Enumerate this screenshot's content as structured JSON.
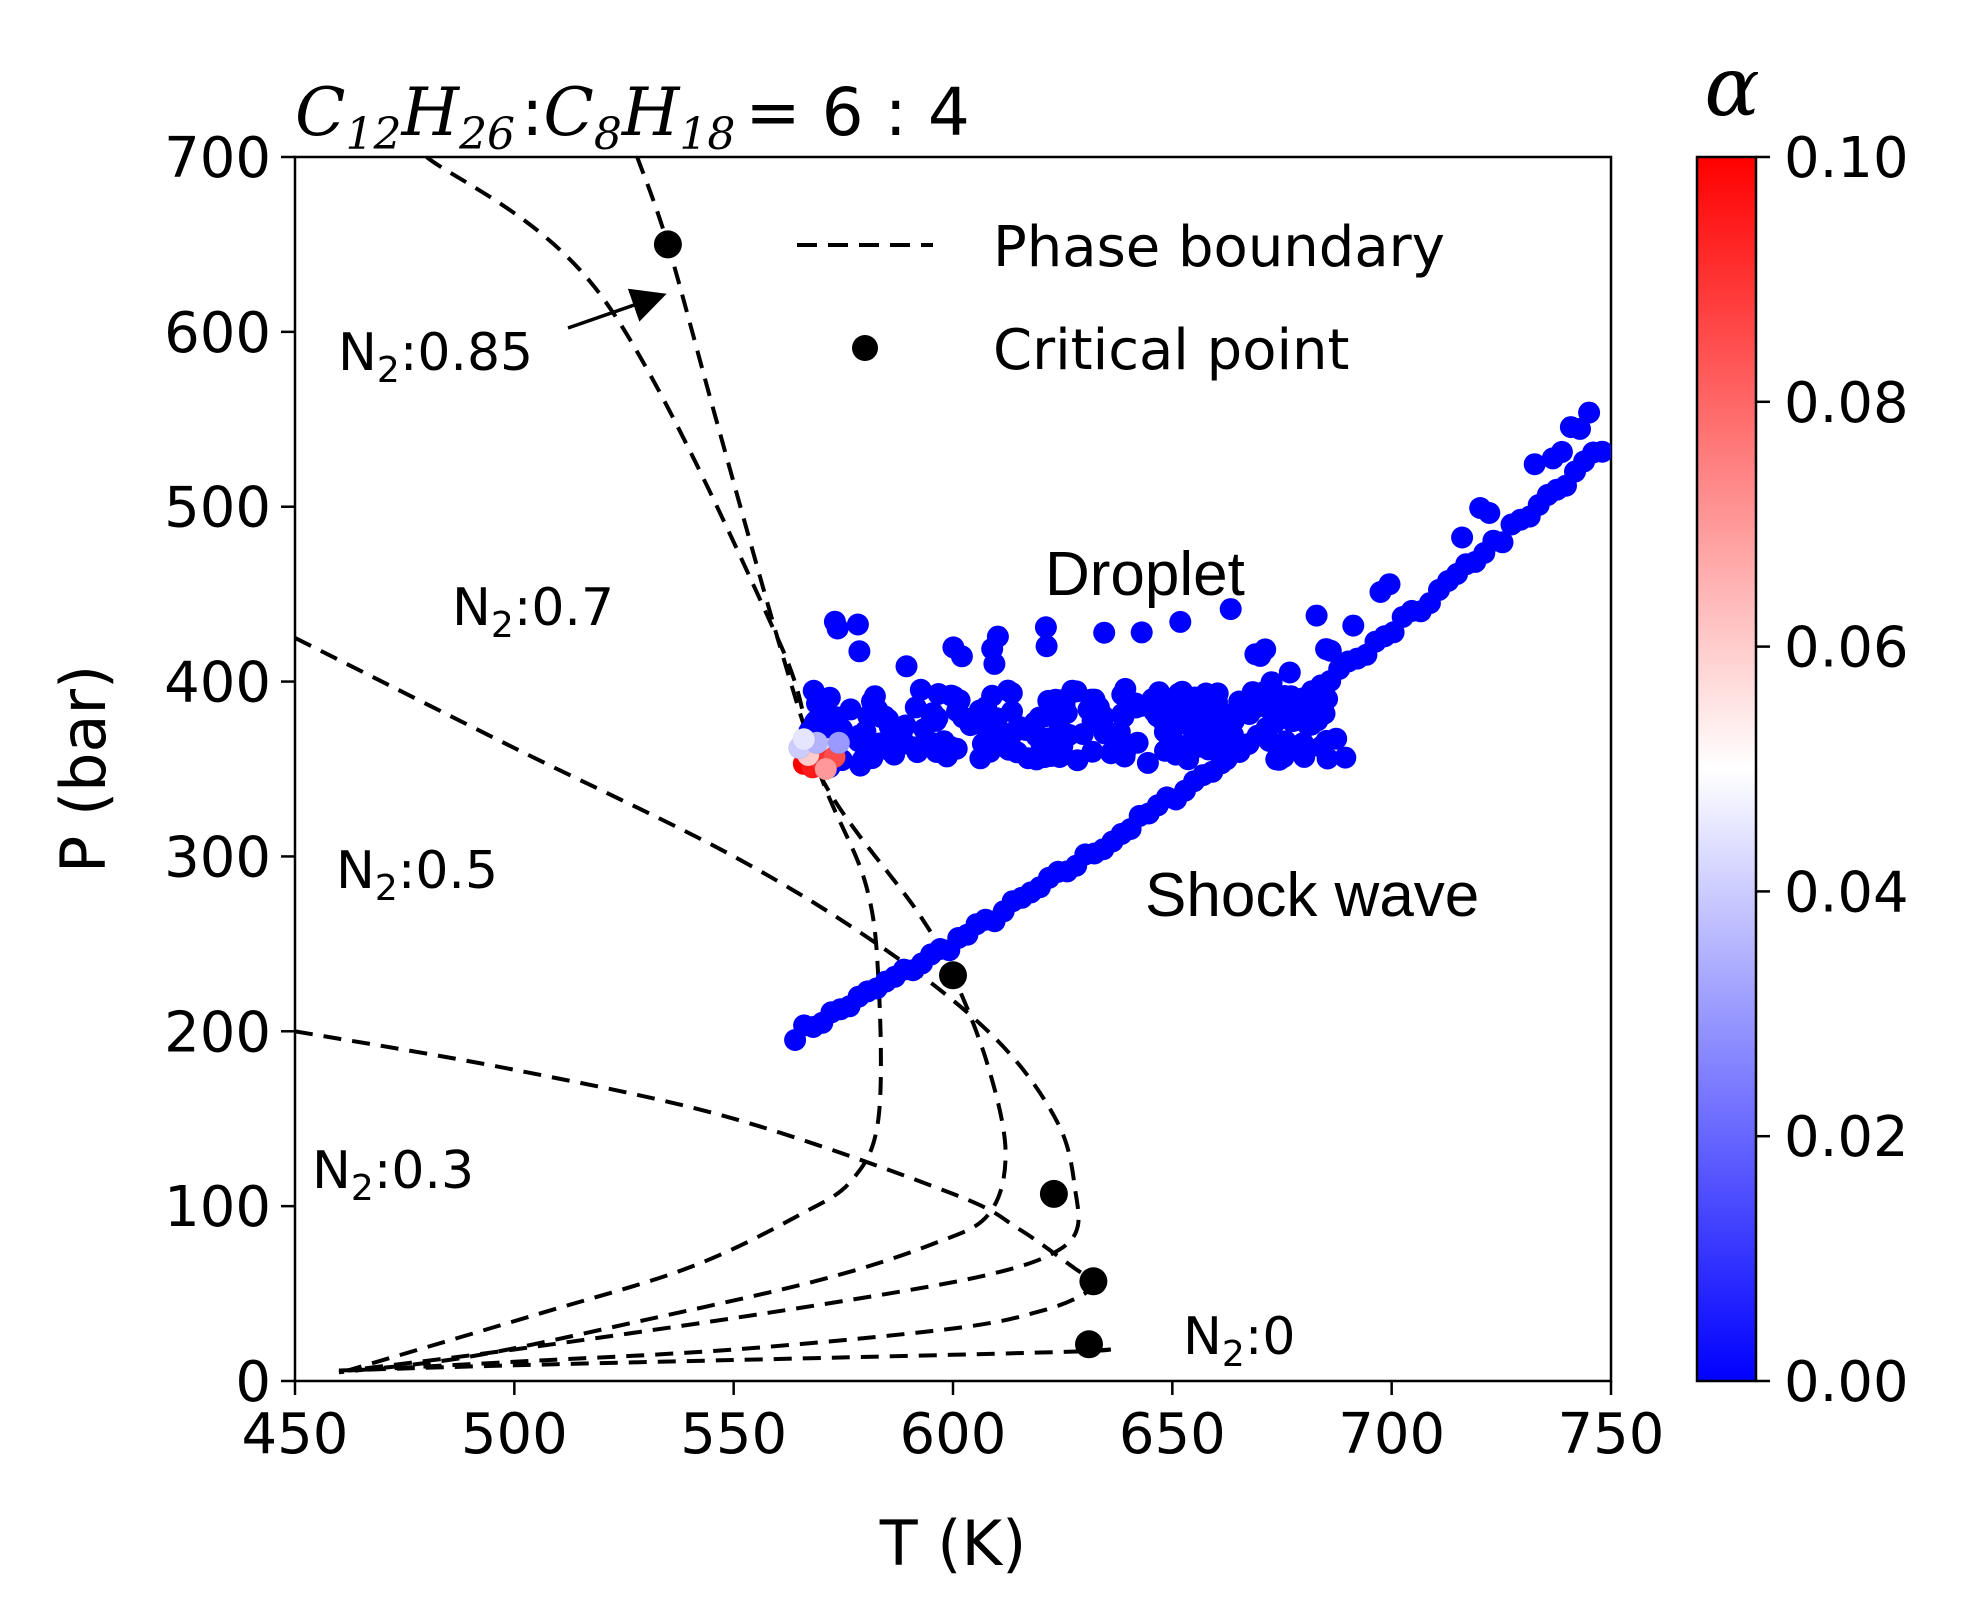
{
  "chart_data": {
    "type": "scatter",
    "title": "C12H26 : C8H18 = 6 : 4",
    "title_parts": {
      "a": "C",
      "a_sub": "12",
      "b": "H",
      "b_sub": "26",
      "sep": ":",
      "c": "C",
      "c_sub": "8",
      "d": "H",
      "d_sub": "18",
      "rest": "= 6 : 4"
    },
    "xlabel": "T (K)",
    "ylabel": "P (bar)",
    "xlim": [
      450,
      750
    ],
    "ylim": [
      0,
      700
    ],
    "xticks": [
      "450",
      "500",
      "550",
      "600",
      "650",
      "700",
      "750"
    ],
    "yticks": [
      "0",
      "100",
      "200",
      "300",
      "400",
      "500",
      "600",
      "700"
    ],
    "colorbar": {
      "label": "α",
      "range": [
        0.0,
        0.1
      ],
      "ticks": [
        "0.00",
        "0.02",
        "0.04",
        "0.06",
        "0.08",
        "0.10"
      ],
      "colormap": "bwr",
      "colors": {
        "low": "#0000ff",
        "mid": "#ffffff",
        "high": "#ff0000"
      }
    },
    "legend": {
      "position": "top-right",
      "entries": [
        {
          "label": "Phase boundary",
          "style": "dashed-line"
        },
        {
          "label": "Critical point",
          "style": "black-dot"
        }
      ]
    },
    "phase_boundaries": [
      {
        "name": "N2:0",
        "upper": [
          [
            460,
            6
          ],
          [
            500,
            9
          ],
          [
            550,
            12
          ],
          [
            600,
            15
          ],
          [
            630,
            17
          ],
          [
            636,
            18
          ]
        ],
        "lower": [
          [
            636,
            18
          ],
          [
            630,
            17
          ]
        ]
      },
      {
        "name": "N2:0.3",
        "upper": [
          [
            450,
            200
          ],
          [
            500,
            178
          ],
          [
            550,
            150
          ],
          [
            600,
            107
          ],
          [
            615,
            87
          ],
          [
            628,
            64
          ],
          [
            632,
            58
          ]
        ],
        "lower": [
          [
            632,
            58
          ],
          [
            630,
            50
          ],
          [
            620,
            40
          ],
          [
            600,
            30
          ],
          [
            550,
            18
          ],
          [
            500,
            11
          ],
          [
            462,
            6
          ]
        ]
      },
      {
        "name": "N2:0.5",
        "upper": [
          [
            450,
            425
          ],
          [
            500,
            362
          ],
          [
            550,
            300
          ],
          [
            585,
            246
          ],
          [
            610,
            195
          ],
          [
            624,
            147
          ],
          [
            628,
            107
          ],
          [
            628,
            85
          ],
          [
            622,
            72
          ],
          [
            610,
            62
          ],
          [
            590,
            52
          ],
          [
            550,
            36
          ],
          [
            500,
            18
          ],
          [
            462,
            6
          ]
        ]
      },
      {
        "name": "N2:0.7",
        "upper": [
          [
            480,
            700
          ],
          [
            520,
            620
          ],
          [
            560,
            425
          ],
          [
            570,
            345
          ],
          [
            592,
            268
          ],
          [
            600,
            232
          ],
          [
            608,
            180
          ],
          [
            612,
            130
          ],
          [
            608,
            95
          ],
          [
            595,
            78
          ],
          [
            570,
            58
          ],
          [
            530,
            35
          ],
          [
            490,
            14
          ],
          [
            460,
            5
          ]
        ]
      },
      {
        "name": "N2:0.85",
        "upper": [
          [
            528,
            700
          ],
          [
            535,
            650
          ],
          [
            546,
            550
          ],
          [
            560,
            425
          ],
          [
            570,
            345
          ],
          [
            580,
            285
          ],
          [
            583,
            230
          ],
          [
            583,
            150
          ],
          [
            577,
            115
          ],
          [
            565,
            95
          ],
          [
            540,
            65
          ],
          [
            505,
            38
          ],
          [
            462,
            6
          ]
        ]
      }
    ],
    "critical_points": [
      {
        "label": "N2:0.85",
        "T": 535,
        "P": 650
      },
      {
        "label": "N2:0.7",
        "T": 600,
        "P": 232
      },
      {
        "label": "N2:0.5",
        "T": 623,
        "P": 107
      },
      {
        "label": "N2:0.3",
        "T": 632,
        "P": 57
      },
      {
        "label": "N2:0",
        "T": 631,
        "P": 21
      }
    ],
    "shock_wave_points": {
      "T_start": 564,
      "P_start": 198,
      "T_end": 748,
      "P_end": 533,
      "count": 90,
      "alpha": 0.0
    },
    "droplet_points": {
      "T_range": [
        566,
        690
      ],
      "P_range": [
        350,
        445
      ],
      "count": 260,
      "alpha": 0.0
    },
    "high_alpha_points": [
      {
        "T": 566,
        "P": 353,
        "alpha": 0.1
      },
      {
        "T": 568,
        "P": 351,
        "alpha": 0.095
      },
      {
        "T": 570,
        "P": 355,
        "alpha": 0.09
      },
      {
        "T": 573,
        "P": 357,
        "alpha": 0.085
      },
      {
        "T": 567,
        "P": 358,
        "alpha": 0.06
      },
      {
        "T": 565,
        "P": 362,
        "alpha": 0.04
      },
      {
        "T": 569,
        "P": 365,
        "alpha": 0.035
      },
      {
        "T": 574,
        "P": 365,
        "alpha": 0.03
      },
      {
        "T": 571,
        "P": 350,
        "alpha": 0.07
      },
      {
        "T": 566,
        "P": 367,
        "alpha": 0.045
      }
    ],
    "annotations": {
      "n2_085": {
        "prefix": "N",
        "sub": "2",
        "suffix": ":0.85"
      },
      "n2_07": {
        "prefix": "N",
        "sub": "2",
        "suffix": ":0.7"
      },
      "n2_05": {
        "prefix": "N",
        "sub": "2",
        "suffix": ":0.5"
      },
      "n2_03": {
        "prefix": "N",
        "sub": "2",
        "suffix": ":0.3"
      },
      "n2_0": {
        "prefix": "N",
        "sub": "2",
        "suffix": ":0"
      },
      "droplet": "Droplet",
      "shock": "Shock wave"
    }
  }
}
